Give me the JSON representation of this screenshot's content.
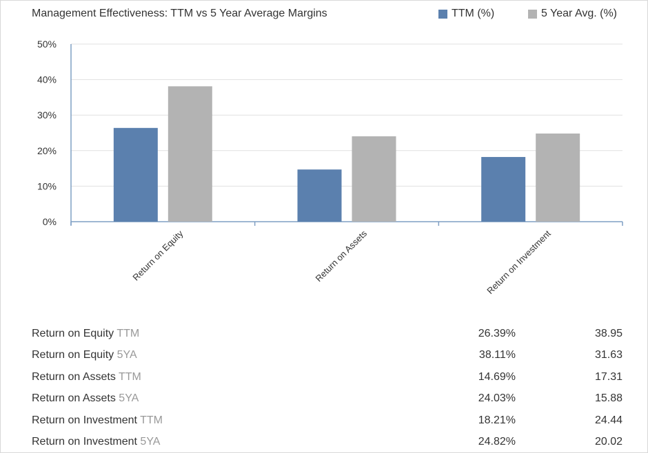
{
  "colors": {
    "ttm": "#5b80ae",
    "avg": "#b3b3b3",
    "grid": "#e0e0e0",
    "axis": "#7f9fc4"
  },
  "chart_data": {
    "type": "bar",
    "title": "Management Effectiveness: TTM vs 5 Year Average Margins",
    "categories": [
      "Return on Equity",
      "Return on Assets",
      "Return on Investment"
    ],
    "series": [
      {
        "name": "TTM (%)",
        "values": [
          26.39,
          14.69,
          18.21
        ]
      },
      {
        "name": "5 Year Avg. (%)",
        "values": [
          38.11,
          24.03,
          24.82
        ]
      }
    ],
    "ylim": [
      0,
      50
    ],
    "yticks": [
      0,
      10,
      20,
      30,
      40,
      50
    ],
    "ytick_labels": [
      "0%",
      "10%",
      "20%",
      "30%",
      "40%",
      "50%"
    ],
    "grid": true,
    "legend": "top-right"
  },
  "table": {
    "rows": [
      {
        "metric": "Return on Equity",
        "sub": "TTM",
        "v1": "26.39%",
        "v2": "38.95"
      },
      {
        "metric": "Return on Equity",
        "sub": "5YA",
        "v1": "38.11%",
        "v2": "31.63"
      },
      {
        "metric": "Return on Assets",
        "sub": "TTM",
        "v1": "14.69%",
        "v2": "17.31"
      },
      {
        "metric": "Return on Assets",
        "sub": "5YA",
        "v1": "24.03%",
        "v2": "15.88"
      },
      {
        "metric": "Return on Investment",
        "sub": "TTM",
        "v1": "18.21%",
        "v2": "24.44"
      },
      {
        "metric": "Return on Investment",
        "sub": "5YA",
        "v1": "24.82%",
        "v2": "20.02"
      }
    ]
  }
}
